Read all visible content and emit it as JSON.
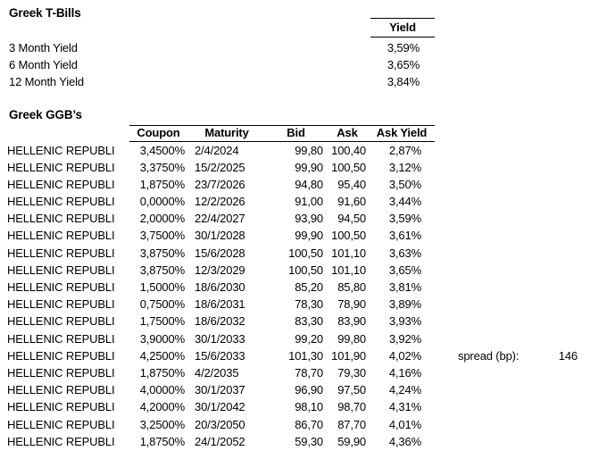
{
  "tbills": {
    "title": "Greek T-Bills",
    "yield_header": "Yield",
    "rows": [
      {
        "label": "3 Month Yield",
        "value": "3,59%"
      },
      {
        "label": "6 Month Yield",
        "value": "3,65%"
      },
      {
        "label": "12 Month Yield",
        "value": "3,84%"
      }
    ]
  },
  "ggbs": {
    "title": "Greek GGB’s",
    "columns": [
      "Coupon",
      "Maturity",
      "Bid",
      "Ask",
      "Ask Yield"
    ],
    "rows": [
      {
        "name": "HELLENIC REPUBLI",
        "coupon": "3,4500%",
        "maturity": "2/4/2024",
        "bid": "99,80",
        "ask": "100,40",
        "ask_yield": "2,87%"
      },
      {
        "name": "HELLENIC REPUBLI",
        "coupon": "3,3750%",
        "maturity": "15/2/2025",
        "bid": "99,90",
        "ask": "100,50",
        "ask_yield": "3,12%"
      },
      {
        "name": "HELLENIC REPUBLI",
        "coupon": "1,8750%",
        "maturity": "23/7/2026",
        "bid": "94,80",
        "ask": "95,40",
        "ask_yield": "3,50%"
      },
      {
        "name": "HELLENIC REPUBLI",
        "coupon": "0,0000%",
        "maturity": "12/2/2026",
        "bid": "91,00",
        "ask": "91,60",
        "ask_yield": "3,44%"
      },
      {
        "name": "HELLENIC REPUBLI",
        "coupon": "2,0000%",
        "maturity": "22/4/2027",
        "bid": "93,90",
        "ask": "94,50",
        "ask_yield": "3,59%"
      },
      {
        "name": "HELLENIC REPUBLI",
        "coupon": "3,7500%",
        "maturity": "30/1/2028",
        "bid": "99,90",
        "ask": "100,50",
        "ask_yield": "3,61%"
      },
      {
        "name": "HELLENIC REPUBLI",
        "coupon": "3,8750%",
        "maturity": "15/6/2028",
        "bid": "100,50",
        "ask": "101,10",
        "ask_yield": "3,63%"
      },
      {
        "name": "HELLENIC REPUBLI",
        "coupon": "3,8750%",
        "maturity": "12/3/2029",
        "bid": "100,50",
        "ask": "101,10",
        "ask_yield": "3,65%"
      },
      {
        "name": "HELLENIC REPUBLI",
        "coupon": "1,5000%",
        "maturity": "18/6/2030",
        "bid": "85,20",
        "ask": "85,80",
        "ask_yield": "3,81%"
      },
      {
        "name": "HELLENIC REPUBLI",
        "coupon": "0,7500%",
        "maturity": "18/6/2031",
        "bid": "78,30",
        "ask": "78,90",
        "ask_yield": "3,89%"
      },
      {
        "name": "HELLENIC REPUBLI",
        "coupon": "1,7500%",
        "maturity": "18/6/2032",
        "bid": "83,30",
        "ask": "83,90",
        "ask_yield": "3,93%"
      },
      {
        "name": "HELLENIC REPUBLI",
        "coupon": "3,9000%",
        "maturity": "30/1/2033",
        "bid": "99,20",
        "ask": "99,80",
        "ask_yield": "3,92%"
      },
      {
        "name": "HELLENIC REPUBLI",
        "coupon": "4,2500%",
        "maturity": "15/6/2033",
        "bid": "101,30",
        "ask": "101,90",
        "ask_yield": "4,02%"
      },
      {
        "name": "HELLENIC REPUBLI",
        "coupon": "1,8750%",
        "maturity": "4/2/2035",
        "bid": "78,70",
        "ask": "79,30",
        "ask_yield": "4,16%"
      },
      {
        "name": "HELLENIC REPUBLI",
        "coupon": "4,0000%",
        "maturity": "30/1/2037",
        "bid": "96,90",
        "ask": "97,50",
        "ask_yield": "4,24%"
      },
      {
        "name": "HELLENIC REPUBLI",
        "coupon": "4,2000%",
        "maturity": "30/1/2042",
        "bid": "98,10",
        "ask": "98,70",
        "ask_yield": "4,31%"
      },
      {
        "name": "HELLENIC REPUBLI",
        "coupon": "3,2500%",
        "maturity": "20/3/2050",
        "bid": "86,70",
        "ask": "87,70",
        "ask_yield": "4,01%"
      },
      {
        "name": "HELLENIC REPUBLI",
        "coupon": "1,8750%",
        "maturity": "24/1/2052",
        "bid": "59,30",
        "ask": "59,90",
        "ask_yield": "4,36%"
      }
    ],
    "spread_label": "spread (bp):",
    "spread_value": "146"
  }
}
